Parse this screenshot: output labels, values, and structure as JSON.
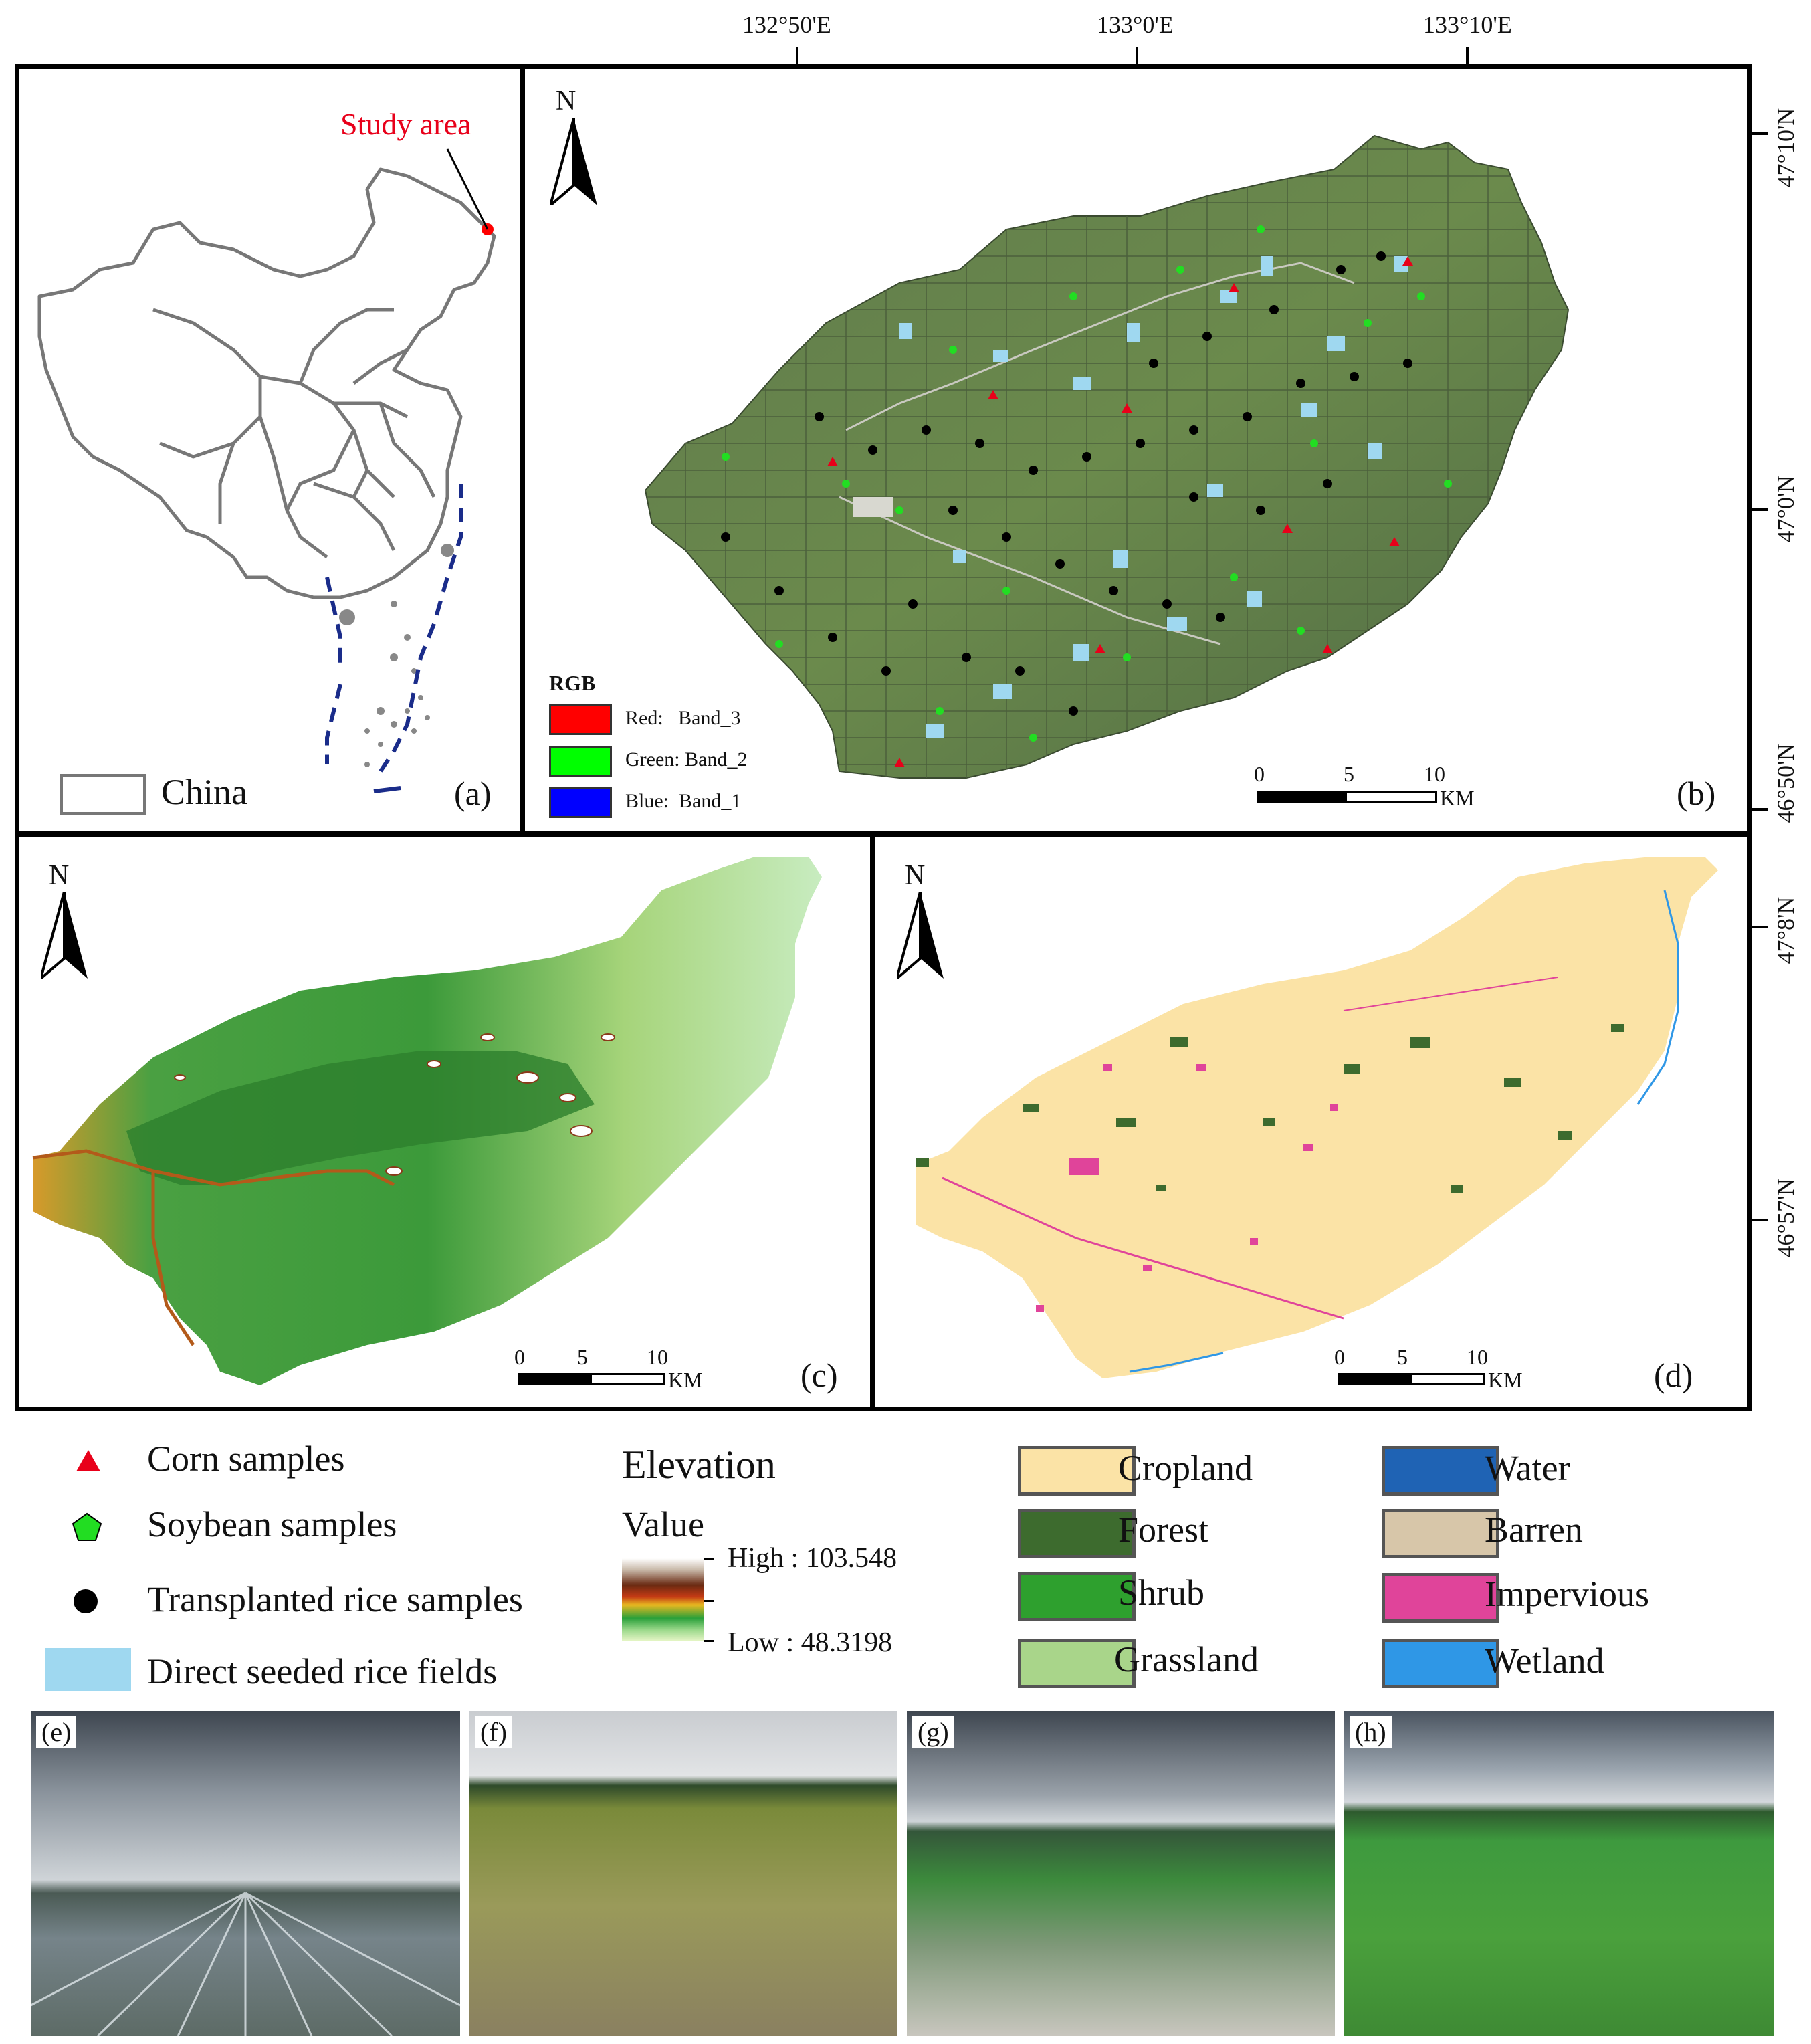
{
  "top_coords": [
    "132°50'E",
    "133°0'E",
    "133°10'E"
  ],
  "right_coords_b": [
    "47°10'N",
    "47°0'N",
    "46°50'N"
  ],
  "right_coords_d": [
    "47°8'N",
    "46°57'N"
  ],
  "panel_a": {
    "study_area": "Study area",
    "legend_china": "China",
    "label": "(a)"
  },
  "panel_b": {
    "north": "N",
    "rgb_title": "RGB",
    "rgb_items": [
      {
        "label": "Red:   Band_3",
        "color": "#ff0000"
      },
      {
        "label": "Green: Band_2",
        "color": "#00ff00"
      },
      {
        "label": "Blue:  Band_1",
        "color": "#0000ff"
      }
    ],
    "scale_ticks": [
      "0",
      "5",
      "10"
    ],
    "scale_unit": "KM",
    "label": "(b)"
  },
  "panel_c": {
    "north": "N",
    "scale_ticks": [
      "0",
      "5",
      "10"
    ],
    "scale_unit": "KM",
    "label": "(c)"
  },
  "panel_d": {
    "north": "N",
    "scale_ticks": [
      "0",
      "5",
      "10"
    ],
    "scale_unit": "KM",
    "label": "(d)"
  },
  "legend": {
    "samples": [
      {
        "label": "Corn samples",
        "color": "#e8001a",
        "icon": "triangle-icon"
      },
      {
        "label": "Soybean samples",
        "color": "#22dd22",
        "icon": "pentagon-icon"
      },
      {
        "label": "Transplanted rice samples",
        "color": "#000000",
        "icon": "circle-icon"
      },
      {
        "label": "Direct seeded rice fields",
        "color": "#9fd8f0",
        "icon": "rectangle-icon"
      }
    ],
    "elevation_title": "Elevation",
    "value_title": "Value",
    "high": "High : 103.548",
    "low": "Low : 48.3198",
    "landcover": [
      {
        "label": "Cropland",
        "color": "#fbe3a6"
      },
      {
        "label": "Forest",
        "color": "#3d6b2e"
      },
      {
        "label": "Shrub",
        "color": "#2ea02e"
      },
      {
        "label": "Grassland",
        "color": "#a9d58a"
      },
      {
        "label": "Water",
        "color": "#1f63b4"
      },
      {
        "label": "Barren",
        "color": "#d7c6a9"
      },
      {
        "label": "Impervious",
        "color": "#e0449a"
      },
      {
        "label": "Wetland",
        "color": "#2f97e6"
      }
    ]
  },
  "photos": [
    "(e)",
    "(f)",
    "(g)",
    "(h)"
  ]
}
